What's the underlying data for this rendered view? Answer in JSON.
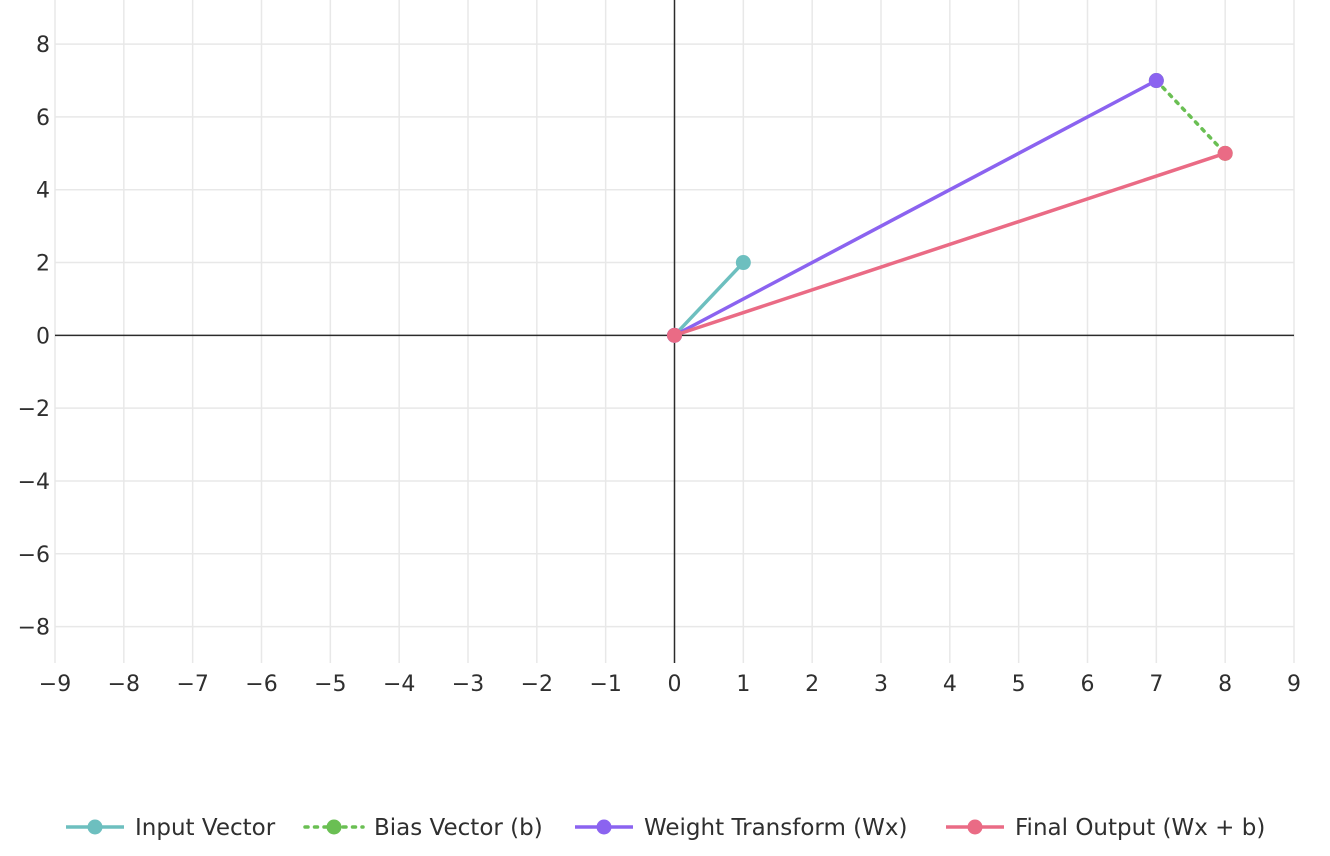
{
  "chart_data": {
    "type": "line",
    "xlim": [
      -9,
      9
    ],
    "ylim": [
      -9,
      8.8
    ],
    "x_ticks": [
      -9,
      -8,
      -7,
      -6,
      -5,
      -4,
      -3,
      -2,
      -1,
      0,
      1,
      2,
      3,
      4,
      5,
      6,
      7,
      8,
      9
    ],
    "y_ticks": [
      -8,
      -6,
      -4,
      -2,
      0,
      2,
      4,
      6,
      8
    ],
    "x_tick_labels": [
      "−9",
      "−8",
      "−7",
      "−6",
      "−5",
      "−4",
      "−3",
      "−2",
      "−1",
      "0",
      "1",
      "2",
      "3",
      "4",
      "5",
      "6",
      "7",
      "8",
      "9"
    ],
    "y_tick_labels": [
      "−8",
      "−6",
      "−4",
      "−2",
      "0",
      "2",
      "4",
      "6",
      "8"
    ],
    "grid": true,
    "zero_lines": true,
    "legend_position": "bottom",
    "series": [
      {
        "name": "Input Vector",
        "color": "#6dbfbf",
        "dash": "solid",
        "points": [
          [
            0,
            0
          ],
          [
            1,
            2
          ]
        ]
      },
      {
        "name": "Bias Vector (b)",
        "color": "#6abf53",
        "dash": "dot",
        "points": [
          [
            7,
            7
          ],
          [
            8,
            5
          ]
        ]
      },
      {
        "name": "Weight Transform (Wx)",
        "color": "#8b63f0",
        "dash": "solid",
        "points": [
          [
            0,
            0
          ],
          [
            7,
            7
          ]
        ]
      },
      {
        "name": "Final Output (Wx + b)",
        "color": "#ea6b85",
        "dash": "solid",
        "points": [
          [
            0,
            0
          ],
          [
            8,
            5
          ]
        ]
      }
    ]
  }
}
